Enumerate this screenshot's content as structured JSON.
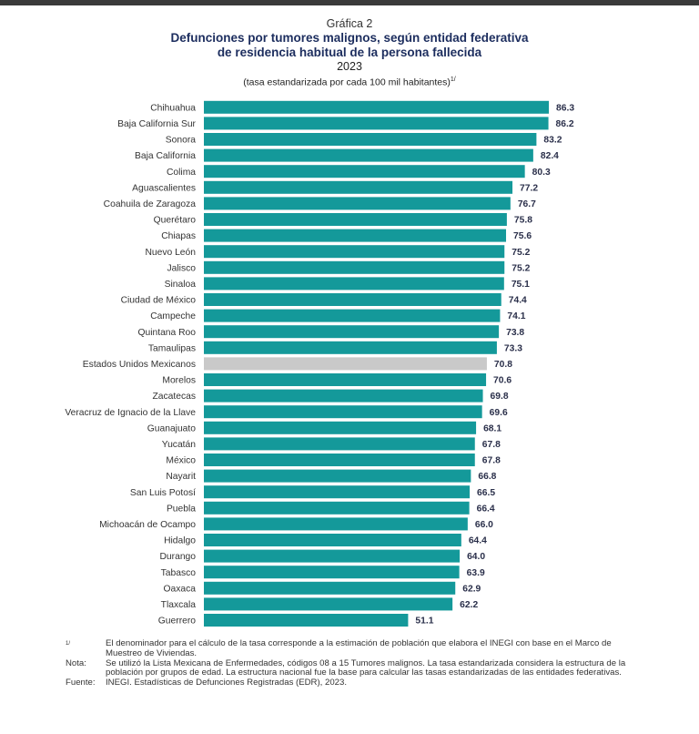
{
  "header": {
    "figure_label": "Gráfica 2",
    "title_line1": "Defunciones por tumores malignos, según entidad federativa",
    "title_line2": "de residencia habitual de la persona fallecida",
    "year": "2023",
    "units": "(tasa estandarizada por cada 100 mil habitantes)",
    "units_ref": "1/"
  },
  "colors": {
    "bar": "#14999a",
    "highlight": "#c9c9c9",
    "value_text": "#2a2f4a"
  },
  "chart_data": {
    "type": "bar",
    "orientation": "horizontal",
    "categories": [
      "Chihuahua",
      "Baja California Sur",
      "Sonora",
      "Baja California",
      "Colima",
      "Aguascalientes",
      "Coahuila de Zaragoza",
      "Querétaro",
      "Chiapas",
      "Nuevo León",
      "Jalisco",
      "Sinaloa",
      "Ciudad de México",
      "Campeche",
      "Quintana Roo",
      "Tamaulipas",
      "Estados Unidos Mexicanos",
      "Morelos",
      "Zacatecas",
      "Veracruz de Ignacio de la Llave",
      "Guanajuato",
      "Yucatán",
      "México",
      "Nayarit",
      "San Luis Potosí",
      "Puebla",
      "Michoacán de Ocampo",
      "Hidalgo",
      "Durango",
      "Tabasco",
      "Oaxaca",
      "Tlaxcala",
      "Guerrero"
    ],
    "values": [
      86.3,
      86.2,
      83.2,
      82.4,
      80.3,
      77.2,
      76.7,
      75.8,
      75.6,
      75.2,
      75.2,
      75.1,
      74.4,
      74.1,
      73.8,
      73.3,
      70.8,
      70.6,
      69.8,
      69.6,
      68.1,
      67.8,
      67.8,
      66.8,
      66.5,
      66.4,
      66.0,
      64.4,
      64.0,
      63.9,
      62.9,
      62.2,
      51.1
    ],
    "value_labels": [
      "86.3",
      "86.2",
      "83.2",
      "82.4",
      "80.3",
      "77.2",
      "76.7",
      "75.8",
      "75.6",
      "75.2",
      "75.2",
      "75.1",
      "74.4",
      "74.1",
      "73.8",
      "73.3",
      "70.8",
      "70.6",
      "69.8",
      "69.6",
      "68.1",
      "67.8",
      "67.8",
      "66.8",
      "66.5",
      "66.4",
      "66.0",
      "64.4",
      "64.0",
      "63.9",
      "62.9",
      "62.2",
      "51.1"
    ],
    "highlight_category": "Estados Unidos Mexicanos",
    "xlim": [
      0,
      86.3
    ],
    "grid": false,
    "legend": "none"
  },
  "notes": [
    {
      "key": "1/",
      "text": "El denominador para el cálculo de la tasa corresponde a la estimación de población que elabora el INEGI con base en el Marco de Muestreo de Viviendas."
    },
    {
      "key": "Nota:",
      "text": "Se utilizó la Lista Mexicana de Enfermedades, códigos 08 a 15 Tumores malignos. La tasa estandarizada considera la estructura de la población por grupos de edad. La estructura nacional fue la base para calcular las tasas estandarizadas de las entidades federativas."
    },
    {
      "key": "Fuente:",
      "text": "INEGI. Estadísticas de Defunciones Registradas (EDR), 2023."
    }
  ]
}
